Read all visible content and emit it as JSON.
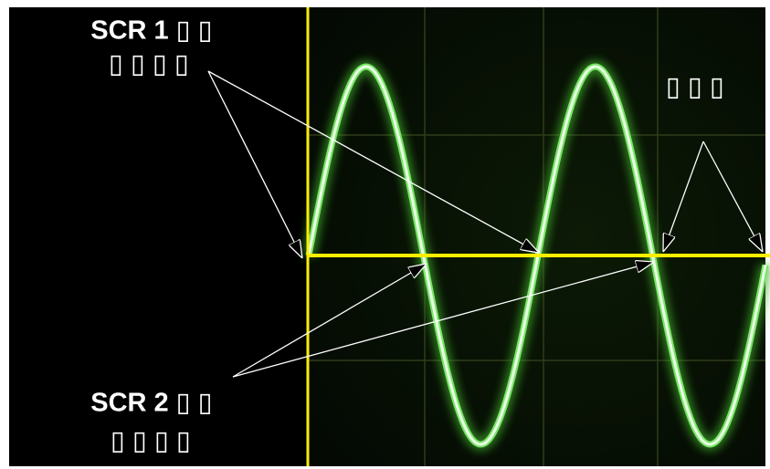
{
  "annotations": [
    {
      "lines": [
        "SCR 1 ▯ ▯",
        "▯ ▯ ▯ ▯"
      ]
    },
    {
      "lines": [
        "▯ ▯ ▯"
      ]
    },
    {
      "lines": [
        "SCR 2 ▯ ▯",
        "▯ ▯ ▯ ▯"
      ]
    }
  ]
}
